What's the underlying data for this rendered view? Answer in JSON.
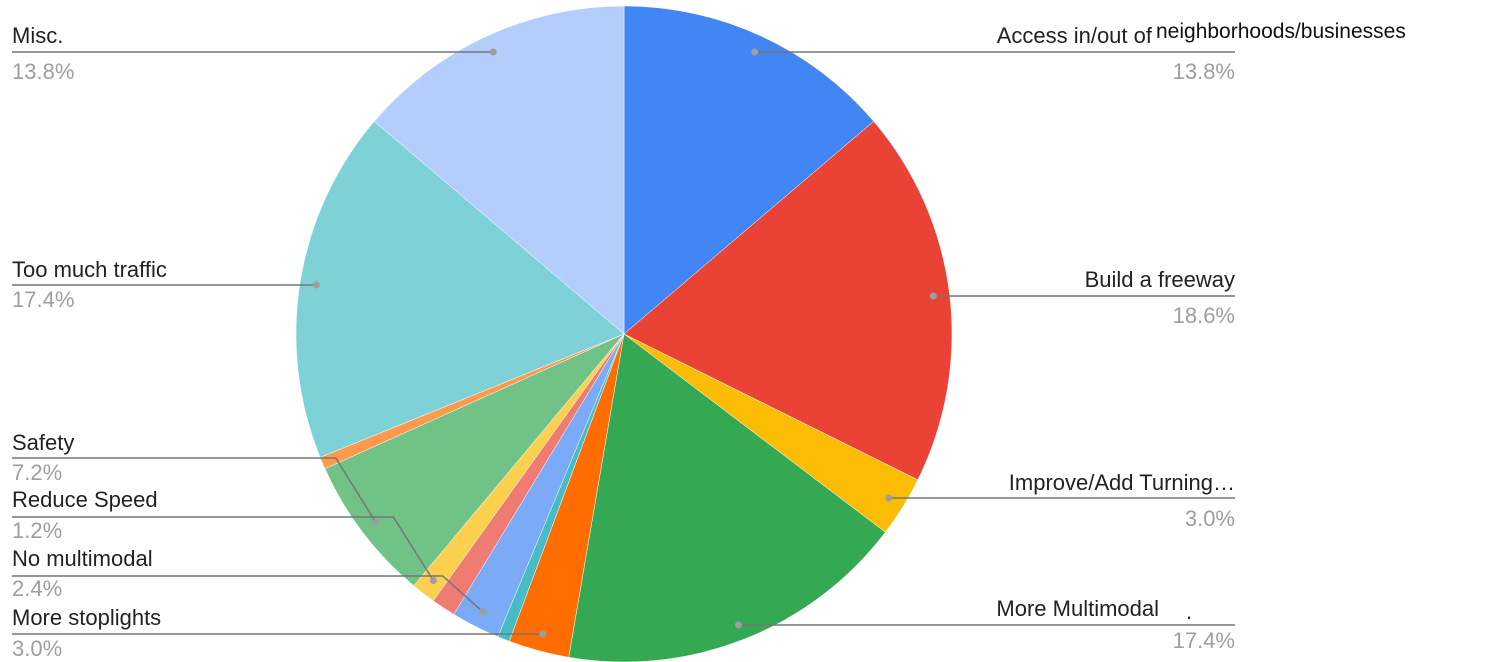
{
  "chart_data": {
    "type": "pie",
    "title": "",
    "slices": [
      {
        "label": "Access in/out of",
        "label_extra": "neighborhoods/businesses",
        "pct_label": "13.8%",
        "value": 13.8,
        "color": "#4285f4"
      },
      {
        "label": "Build a freeway",
        "pct_label": "18.6%",
        "value": 18.6,
        "color": "#ea4335"
      },
      {
        "label": "Improve/Add Turning…",
        "pct_label": "3.0%",
        "value": 3.0,
        "color": "#fbbc04"
      },
      {
        "label": "More Multimodal",
        "pct_label": "17.4%",
        "value": 17.4,
        "color": "#34a853"
      },
      {
        "label": "More stoplights",
        "pct_label": "3.0%",
        "value": 3.0,
        "color": "#ff6d01"
      },
      {
        "label": "",
        "pct_label": "",
        "value": 0.6,
        "color": "#46bdc6"
      },
      {
        "label": "No multimodal",
        "pct_label": "2.4%",
        "value": 2.4,
        "color": "#7baaf7"
      },
      {
        "label": "",
        "pct_label": "",
        "value": 1.2,
        "color": "#f07b72"
      },
      {
        "label": "Reduce Speed",
        "pct_label": "1.2%",
        "value": 1.2,
        "color": "#fcd04f"
      },
      {
        "label": "Safety",
        "pct_label": "7.2%",
        "value": 7.2,
        "color": "#71c287"
      },
      {
        "label": "",
        "pct_label": "",
        "value": 0.6,
        "color": "#ff994d"
      },
      {
        "label": "Too much traffic",
        "pct_label": "17.4%",
        "value": 17.4,
        "color": "#7ed1d7"
      },
      {
        "label": "Misc.",
        "pct_label": "13.8%",
        "value": 13.8,
        "color": "#b3cefb"
      }
    ],
    "stray_mark": "."
  }
}
